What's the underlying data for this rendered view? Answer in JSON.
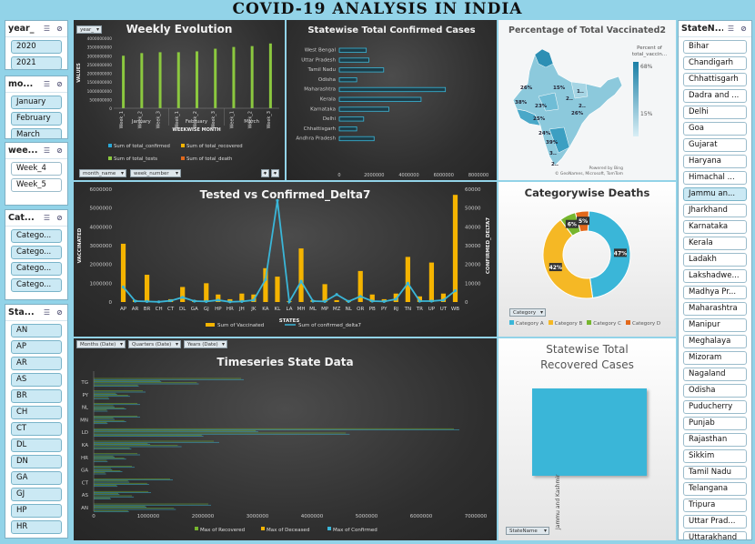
{
  "banner": {
    "title": "COVID-19 ANALYSIS IN INDIA"
  },
  "slicers": {
    "year": {
      "title": "year_",
      "items": [
        "2020",
        "2021"
      ]
    },
    "month": {
      "title": "mo...",
      "items": [
        "January",
        "February",
        "March"
      ]
    },
    "week": {
      "title": "wee...",
      "items": [
        "Week_4",
        "Week_5"
      ]
    },
    "category": {
      "title": "Cat...",
      "items": [
        "Catego...",
        "Catego...",
        "Catego...",
        "Catego..."
      ]
    },
    "stateabbr": {
      "title": "Sta...",
      "items": [
        "AN",
        "AP",
        "AR",
        "AS",
        "BR",
        "CH",
        "CT",
        "DL",
        "DN",
        "GA",
        "GJ",
        "HP",
        "HR"
      ]
    },
    "statename": {
      "title": "StateN...",
      "items": [
        "Bihar",
        "Chandigarh",
        "Chhattisgarh",
        "Dadra and ...",
        "Delhi",
        "Goa",
        "Gujarat",
        "Haryana",
        "Himachal ...",
        "Jammu an...",
        "Jharkhand",
        "Karnataka",
        "Kerala",
        "Ladakh",
        "Lakshadwe...",
        "Madhya Pr...",
        "Maharashtra",
        "Manipur",
        "Meghalaya",
        "Mizoram",
        "Nagaland",
        "Odisha",
        "Puducherry",
        "Punjab",
        "Rajasthan",
        "Sikkim",
        "Tamil Nadu",
        "Telangana",
        "Tripura",
        "Uttar Prad...",
        "Uttarakhand"
      ],
      "selected": "Jammu an..."
    }
  },
  "weekly": {
    "title": "Weekly Evolution",
    "filter_pill": "year_",
    "ylabel": "VALUES",
    "xlabel": "WEEKWISE MONTH",
    "yticks": [
      "4000000000",
      "3500000000",
      "3000000000",
      "2500000000",
      "2000000000",
      "1500000000",
      "1000000000",
      "500000000",
      "0"
    ],
    "weeks": [
      "Week_1",
      "Week_2",
      "Week_3",
      "Week_1",
      "Week_2",
      "Week_3",
      "Week_1",
      "Week_2",
      "Week_3"
    ],
    "months": [
      "January",
      "February",
      "March"
    ],
    "legend": [
      "Sum of total_confirmed",
      "Sum of total_recovered",
      "Sum of total_tests",
      "Sum of total_death"
    ],
    "pills": [
      "month_name",
      "week_number"
    ],
    "colors": {
      "confirmed": "#29a8d6",
      "recovered": "#f5b400",
      "tests": "#8bc83f",
      "death": "#e2691c"
    },
    "chart_data": {
      "type": "bar",
      "categories": [
        "January Week_1",
        "January Week_2",
        "January Week_3",
        "February Week_1",
        "February Week_2",
        "February Week_3",
        "March Week_1",
        "March Week_2",
        "March Week_3"
      ],
      "series": [
        {
          "name": "Sum of total_confirmed",
          "values": [
            0,
            0,
            0,
            0,
            0,
            0,
            0,
            0,
            0
          ]
        },
        {
          "name": "Sum of total_recovered",
          "values": [
            0,
            0,
            0,
            0,
            0,
            0,
            0,
            0,
            0
          ]
        },
        {
          "name": "Sum of total_tests",
          "values": [
            3000000000,
            3150000000,
            3200000000,
            3200000000,
            3250000000,
            3400000000,
            3500000000,
            3550000000,
            3700000000
          ]
        },
        {
          "name": "Sum of total_death",
          "values": [
            0,
            0,
            0,
            0,
            0,
            0,
            0,
            0,
            0
          ]
        }
      ],
      "ylim": [
        0,
        4000000000
      ]
    }
  },
  "statewise": {
    "title": "Statewise Total Confirmed Cases",
    "xticks": [
      "0",
      "2000000",
      "4000000",
      "6000000",
      "8000000"
    ],
    "chart_data": {
      "type": "bar",
      "orientation": "horizontal",
      "categories": [
        "West Bengal",
        "Uttar Pradesh",
        "Tamil Nadu",
        "Odisha",
        "Maharashtra",
        "Kerala",
        "Karnataka",
        "Delhi",
        "Chhattisgarh",
        "Andhra Pradesh"
      ],
      "values": [
        1550000,
        1700000,
        2550000,
        1000000,
        6100000,
        4700000,
        2850000,
        1400000,
        1000000,
        2000000
      ],
      "xlim": [
        0,
        8000000
      ]
    }
  },
  "map": {
    "title": "Percentage of Total Vaccinated2",
    "legend_title": "Percent of total_vaccin...",
    "max": "68%",
    "min": "15%",
    "labels": [
      "26%",
      "15%",
      "38%",
      "23%",
      "25%",
      "39%",
      "26%",
      "24%",
      "1..",
      "2..",
      "3..",
      "2..",
      "2.."
    ],
    "credit1": "Powered by Bing",
    "credit2": "© GeoNames, Microsoft, TomTom"
  },
  "tested": {
    "title": "Tested vs Confirmed_Delta7",
    "ylabel_left": "VACCINATED",
    "ylabel_right": "CONFIRMED_DELTA7",
    "xlabel": "STATES",
    "yticks_left": [
      "6000000",
      "5000000",
      "4000000",
      "3000000",
      "2000000",
      "1000000",
      "0"
    ],
    "yticks_right": [
      "60000",
      "50000",
      "40000",
      "30000",
      "20000",
      "10000",
      "0"
    ],
    "legend": [
      "Sum of Vaccinated",
      "Sum of confirmed_delta7"
    ],
    "chart_data": {
      "type": "bar+line",
      "categories": [
        "AP",
        "AR",
        "BR",
        "CH",
        "CT",
        "DL",
        "GA",
        "GJ",
        "HP",
        "HR",
        "JH",
        "JK",
        "KA",
        "KL",
        "LA",
        "MH",
        "ML",
        "MP",
        "MZ",
        "NL",
        "OR",
        "PB",
        "PY",
        "RJ",
        "TN",
        "TR",
        "UP",
        "UT",
        "WB"
      ],
      "series": [
        {
          "name": "Sum of Vaccinated",
          "type": "bar",
          "values": [
            3100000,
            100000,
            1450000,
            50000,
            150000,
            800000,
            100000,
            1000000,
            400000,
            150000,
            450000,
            400000,
            1800000,
            1350000,
            50000,
            2850000,
            100000,
            950000,
            100000,
            100000,
            1650000,
            400000,
            150000,
            450000,
            2400000,
            300000,
            2100000,
            450000,
            5700000
          ]
        },
        {
          "name": "Sum of confirmed_delta7",
          "type": "line",
          "values": [
            8000,
            500,
            300,
            100,
            700,
            2500,
            500,
            300,
            1000,
            100,
            300,
            1000,
            12000,
            54000,
            100,
            11000,
            500,
            300,
            4000,
            300,
            3000,
            500,
            300,
            1500,
            10000,
            500,
            500,
            1000,
            6000
          ]
        }
      ],
      "ylim_left": [
        0,
        6000000
      ],
      "ylim_right": [
        0,
        60000
      ]
    }
  },
  "deaths": {
    "title": "Categorywise Deaths",
    "pill": "Category",
    "legend": [
      "Category A",
      "Category B",
      "Category C",
      "Category D"
    ],
    "colors": [
      "#3ab6d8",
      "#f5b825",
      "#76b62e",
      "#e2691c"
    ],
    "chart_data": {
      "type": "pie",
      "donut": true,
      "labels": [
        "Category A",
        "Category B",
        "Category C",
        "Category D"
      ],
      "values": [
        47,
        42,
        6,
        5
      ],
      "data_labels": [
        "47%",
        "42%",
        "6%",
        "5%"
      ]
    }
  },
  "timeseries": {
    "title": "Timeseries State Data",
    "pills": [
      "Months (Date)",
      "Quarters (Date)",
      "Years (Date)"
    ],
    "xticks": [
      "0",
      "1000000",
      "2000000",
      "3000000",
      "4000000",
      "5000000",
      "6000000",
      "7000000"
    ],
    "ylabels": [
      "TG",
      "PY",
      "NL",
      "MN",
      "LD",
      "KA",
      "HR",
      "GA",
      "CT",
      "AS",
      "AN"
    ],
    "legend": [
      "Max of Recovered",
      "Max of Deceased",
      "Max of Confirmed"
    ],
    "chart_data": {
      "type": "bar",
      "orientation": "horizontal",
      "categories": [
        "TG",
        "PY",
        "NL",
        "MN",
        "LD",
        "KA",
        "HR",
        "GA",
        "CT",
        "AS",
        "AN"
      ],
      "series": [
        {
          "name": "Max of Recovered",
          "values": [
            2700000,
            900000,
            800000,
            800000,
            6600000,
            2200000,
            800000,
            700000,
            1400000,
            1000000,
            2100000
          ]
        },
        {
          "name": "Max of Deceased",
          "values": [
            20000,
            10000,
            5000,
            10000,
            130000,
            40000,
            10000,
            10000,
            20000,
            10000,
            25000
          ]
        },
        {
          "name": "Max of Confirmed",
          "values": [
            2750000,
            950000,
            850000,
            850000,
            6700000,
            2300000,
            850000,
            750000,
            1450000,
            1050000,
            2150000
          ]
        }
      ],
      "xlim": [
        0,
        7000000
      ]
    }
  },
  "recovered": {
    "title": "Statewise Total Recovered Cases",
    "pill": "StateName",
    "xlabel": "Jammu and Kashmir",
    "chart_data": {
      "type": "bar",
      "categories": [
        "Jammu and Kashmir"
      ],
      "values": [
        1
      ]
    }
  }
}
